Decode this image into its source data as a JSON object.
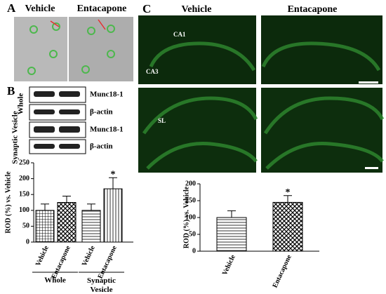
{
  "panel_labels": [
    "A",
    "B",
    "C"
  ],
  "panel_a": {
    "columns": [
      "Vehicle",
      "Entacapone"
    ]
  },
  "panel_b": {
    "blot_labels": [
      "Munc18-1",
      "β-actin",
      "Munc18-1",
      "β-actin"
    ],
    "fractions": [
      "Whole",
      "Synaptic Vesicle"
    ]
  },
  "panel_c": {
    "columns": [
      "Vehicle",
      "Entacapone"
    ],
    "regions": [
      "CA1",
      "CA3",
      "SL"
    ]
  },
  "chart_data": [
    {
      "type": "bar",
      "ylabel": "ROD (%) vs. Vehicle",
      "categories": [
        "Vehicle",
        "Entacapone",
        "Vehicle",
        "Entacapone"
      ],
      "values": [
        100,
        125,
        100,
        168
      ],
      "errors": [
        20,
        20,
        20,
        35
      ],
      "groups": [
        "Whole",
        "Synaptic Vesicle"
      ],
      "annotations": [
        {
          "text": "*",
          "category": 3
        }
      ],
      "ylim": [
        0,
        250
      ],
      "yticks": [
        0,
        50,
        100,
        150,
        200,
        250
      ]
    },
    {
      "type": "bar",
      "ylabel": "ROD (%) vs. Vehicle",
      "categories": [
        "Vehicle",
        "Entacapone"
      ],
      "values": [
        100,
        145
      ],
      "errors": [
        20,
        20
      ],
      "annotations": [
        {
          "text": "*",
          "category": 1
        }
      ],
      "ylim": [
        0,
        200
      ],
      "yticks": [
        0,
        50,
        100,
        150,
        200
      ]
    }
  ]
}
